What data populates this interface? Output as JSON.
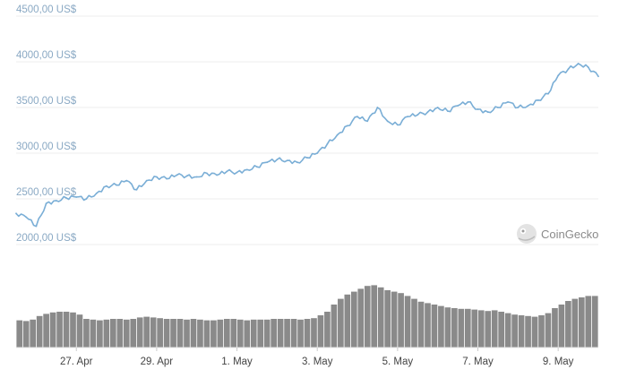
{
  "chart_data": [
    {
      "type": "line",
      "title": "",
      "xlabel": "",
      "ylabel": "",
      "x_range": [
        "2021-04-25T12:00",
        "2021-05-10T00:00"
      ],
      "ylim": [
        2000,
        4500
      ],
      "y_ticks": [
        {
          "value": 2000,
          "label": "2000,00 US$"
        },
        {
          "value": 2500,
          "label": "2500,00 US$"
        },
        {
          "value": 3000,
          "label": "3000,00 US$"
        },
        {
          "value": 3500,
          "label": "3500,00 US$"
        },
        {
          "value": 4000,
          "label": "4000,00 US$"
        },
        {
          "value": 4500,
          "label": "4500,00 US$"
        }
      ],
      "grid": "horizontal",
      "legend": "none",
      "color": "#7aaed6",
      "x": [
        "2021-04-25T12:00",
        "2021-04-25T18:00",
        "2021-04-26T00:00",
        "2021-04-26T06:00",
        "2021-04-26T12:00",
        "2021-04-26T18:00",
        "2021-04-27T00:00",
        "2021-04-27T06:00",
        "2021-04-27T12:00",
        "2021-04-27T18:00",
        "2021-04-28T00:00",
        "2021-04-28T06:00",
        "2021-04-28T12:00",
        "2021-04-28T18:00",
        "2021-04-29T00:00",
        "2021-04-29T06:00",
        "2021-04-29T12:00",
        "2021-04-29T18:00",
        "2021-04-30T00:00",
        "2021-04-30T06:00",
        "2021-04-30T12:00",
        "2021-04-30T18:00",
        "2021-05-01T00:00",
        "2021-05-01T06:00",
        "2021-05-01T12:00",
        "2021-05-01T18:00",
        "2021-05-02T00:00",
        "2021-05-02T06:00",
        "2021-05-02T12:00",
        "2021-05-02T18:00",
        "2021-05-03T00:00",
        "2021-05-03T06:00",
        "2021-05-03T12:00",
        "2021-05-03T18:00",
        "2021-05-04T00:00",
        "2021-05-04T06:00",
        "2021-05-04T12:00",
        "2021-05-04T18:00",
        "2021-05-05T00:00",
        "2021-05-05T06:00",
        "2021-05-05T12:00",
        "2021-05-05T18:00",
        "2021-05-06T00:00",
        "2021-05-06T06:00",
        "2021-05-06T12:00",
        "2021-05-06T18:00",
        "2021-05-07T00:00",
        "2021-05-07T06:00",
        "2021-05-07T12:00",
        "2021-05-07T18:00",
        "2021-05-08T00:00",
        "2021-05-08T06:00",
        "2021-05-08T12:00",
        "2021-05-08T18:00",
        "2021-05-09T00:00",
        "2021-05-09T06:00",
        "2021-05-09T12:00",
        "2021-05-09T18:00",
        "2021-05-10T00:00"
      ],
      "values": [
        2340,
        2300,
        2200,
        2450,
        2480,
        2510,
        2520,
        2500,
        2560,
        2640,
        2650,
        2700,
        2600,
        2700,
        2740,
        2720,
        2760,
        2750,
        2740,
        2780,
        2760,
        2800,
        2790,
        2820,
        2850,
        2900,
        2930,
        2920,
        2900,
        2950,
        3000,
        3100,
        3200,
        3300,
        3400,
        3350,
        3500,
        3350,
        3310,
        3400,
        3420,
        3450,
        3500,
        3460,
        3520,
        3560,
        3480,
        3450,
        3500,
        3560,
        3500,
        3520,
        3580,
        3650,
        3850,
        3920,
        3980,
        3940,
        3840
      ],
      "axis_labels": [
        "27. Apr",
        "29. Apr",
        "1. May",
        "3. May",
        "5. May",
        "7. May",
        "9. May"
      ],
      "watermark": "CoinGecko"
    },
    {
      "type": "bar",
      "title": "",
      "description": "volume bars without a printed value axis (relative heights)",
      "color": "#8a8a8a",
      "ylim": [
        0,
        1
      ],
      "values": [
        0.38,
        0.37,
        0.39,
        0.44,
        0.47,
        0.49,
        0.5,
        0.5,
        0.49,
        0.46,
        0.4,
        0.39,
        0.38,
        0.39,
        0.4,
        0.4,
        0.39,
        0.4,
        0.42,
        0.43,
        0.42,
        0.41,
        0.4,
        0.4,
        0.4,
        0.39,
        0.4,
        0.39,
        0.38,
        0.38,
        0.39,
        0.4,
        0.4,
        0.39,
        0.38,
        0.39,
        0.39,
        0.39,
        0.4,
        0.4,
        0.4,
        0.4,
        0.39,
        0.4,
        0.41,
        0.45,
        0.5,
        0.6,
        0.68,
        0.74,
        0.78,
        0.82,
        0.86,
        0.87,
        0.84,
        0.8,
        0.78,
        0.76,
        0.72,
        0.68,
        0.64,
        0.62,
        0.6,
        0.58,
        0.56,
        0.55,
        0.54,
        0.54,
        0.53,
        0.52,
        0.51,
        0.52,
        0.5,
        0.48,
        0.46,
        0.45,
        0.44,
        0.43,
        0.45,
        0.48,
        0.55,
        0.6,
        0.65,
        0.68,
        0.7,
        0.72,
        0.72
      ]
    }
  ]
}
